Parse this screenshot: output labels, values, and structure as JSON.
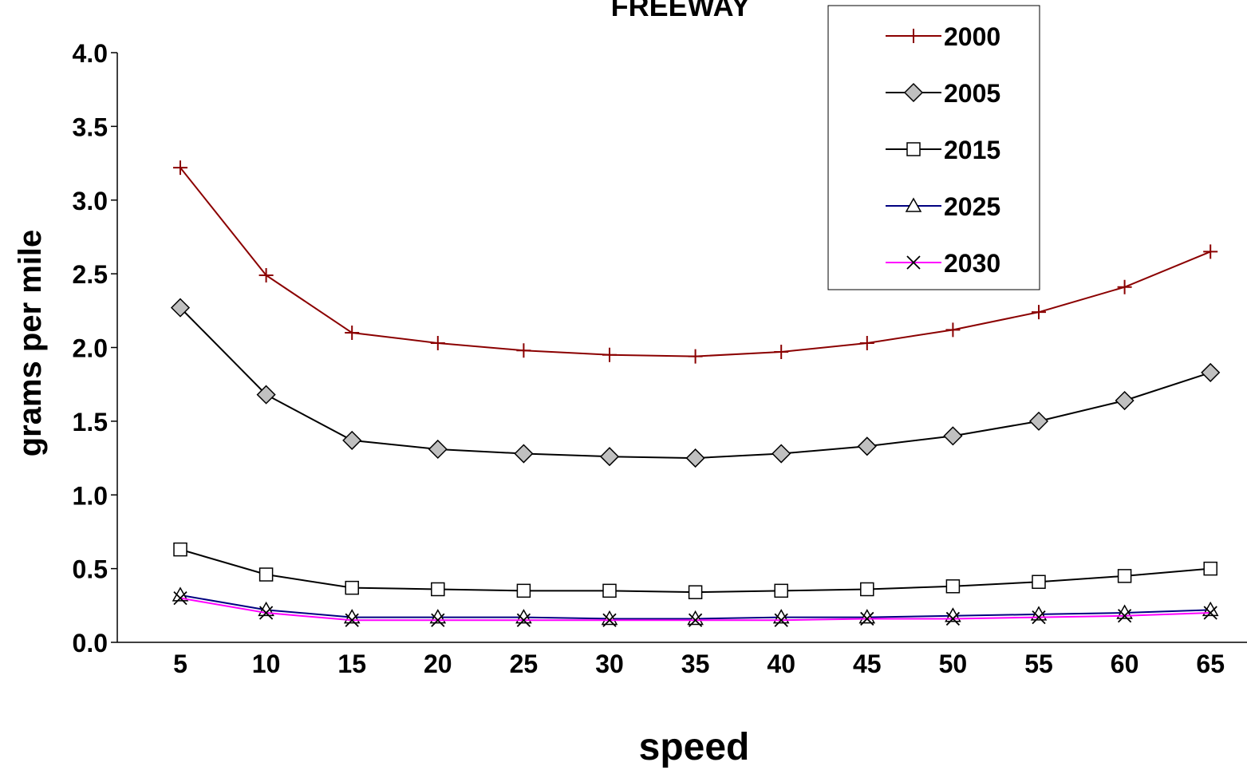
{
  "chart_data": {
    "type": "line",
    "title": "FREEWAY",
    "xlabel": "speed",
    "ylabel": "grams per mile",
    "x": [
      5,
      10,
      15,
      20,
      25,
      30,
      35,
      40,
      45,
      50,
      55,
      60,
      65
    ],
    "ylim": [
      0,
      4
    ],
    "y_ticks": [
      "0.0",
      "0.5",
      "1.0",
      "1.5",
      "2.0",
      "2.5",
      "3.0",
      "3.5",
      "4.0"
    ],
    "grid": false,
    "legend_position": "top-right",
    "series": [
      {
        "name": "2000",
        "color": "#8b0000",
        "marker": "plus",
        "values": [
          3.22,
          2.49,
          2.1,
          2.03,
          1.98,
          1.95,
          1.94,
          1.97,
          2.03,
          2.12,
          2.24,
          2.41,
          2.65
        ]
      },
      {
        "name": "2005",
        "color": "#000000",
        "marker": "diamond",
        "marker_fill": "#c0c0c0",
        "values": [
          2.27,
          1.68,
          1.37,
          1.31,
          1.28,
          1.26,
          1.25,
          1.28,
          1.33,
          1.4,
          1.5,
          1.64,
          1.83
        ]
      },
      {
        "name": "2015",
        "color": "#000000",
        "marker": "square",
        "marker_fill": "#ffffff",
        "values": [
          0.63,
          0.46,
          0.37,
          0.36,
          0.35,
          0.35,
          0.34,
          0.35,
          0.36,
          0.38,
          0.41,
          0.45,
          0.5
        ]
      },
      {
        "name": "2025",
        "color": "#000080",
        "marker": "triangle",
        "marker_fill": "#ffffff",
        "values": [
          0.32,
          0.22,
          0.17,
          0.17,
          0.17,
          0.16,
          0.16,
          0.17,
          0.17,
          0.18,
          0.19,
          0.2,
          0.22
        ]
      },
      {
        "name": "2030",
        "color": "#ff00ff",
        "marker": "x",
        "values": [
          0.3,
          0.2,
          0.15,
          0.15,
          0.15,
          0.15,
          0.15,
          0.15,
          0.16,
          0.16,
          0.17,
          0.18,
          0.2
        ]
      }
    ]
  }
}
